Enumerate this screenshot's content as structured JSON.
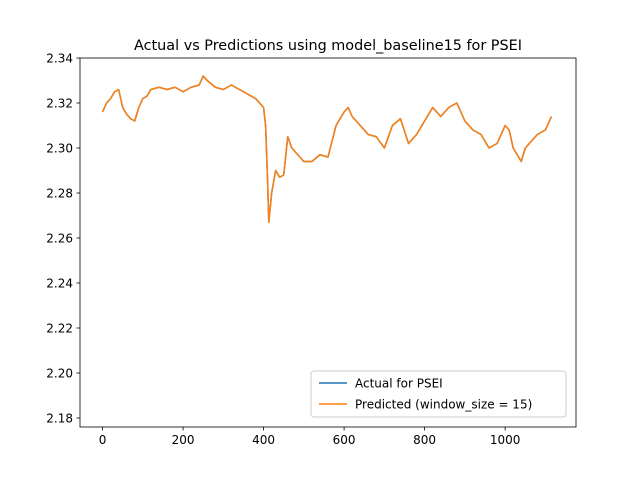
{
  "chart_data": {
    "type": "line",
    "title": "Actual vs Predictions using model_baseline15 for PSEI",
    "xlabel": "",
    "ylabel": "",
    "xlim": [
      -56,
      1176
    ],
    "ylim": [
      2.176,
      2.34
    ],
    "x_ticks": [
      0,
      200,
      400,
      600,
      800,
      1000
    ],
    "x_tick_labels": [
      "0",
      "200",
      "400",
      "600",
      "800",
      "1000"
    ],
    "y_ticks": [
      2.18,
      2.2,
      2.22,
      2.24,
      2.26,
      2.28,
      2.3,
      2.32,
      2.34
    ],
    "y_tick_labels": [
      "2.18",
      "2.20",
      "2.22",
      "2.24",
      "2.26",
      "2.28",
      "2.30",
      "2.32",
      "2.34"
    ],
    "grid": false,
    "legend_position": "lower-right",
    "series": [
      {
        "name": "Actual for PSEI",
        "color": "#1f77b4",
        "x": [
          0,
          10,
          20,
          30,
          40,
          50,
          60,
          70,
          80,
          90,
          100,
          110,
          120,
          140,
          160,
          180,
          200,
          220,
          240,
          250,
          260,
          280,
          300,
          320,
          340,
          360,
          380,
          390,
          400,
          405,
          410,
          413,
          420,
          430,
          440,
          450,
          460,
          470,
          480,
          500,
          520,
          540,
          560,
          580,
          600,
          610,
          620,
          640,
          660,
          680,
          700,
          720,
          740,
          760,
          780,
          800,
          820,
          840,
          860,
          880,
          900,
          920,
          940,
          960,
          980,
          1000,
          1010,
          1020,
          1040,
          1050,
          1060,
          1080,
          1100,
          1110,
          1115
        ],
        "y": [
          2.316,
          2.32,
          2.322,
          2.325,
          2.326,
          2.318,
          2.315,
          2.313,
          2.312,
          2.318,
          2.322,
          2.323,
          2.326,
          2.327,
          2.326,
          2.327,
          2.325,
          2.327,
          2.328,
          2.332,
          2.33,
          2.327,
          2.326,
          2.328,
          2.326,
          2.324,
          2.322,
          2.32,
          2.318,
          2.31,
          2.285,
          2.267,
          2.28,
          2.29,
          2.287,
          2.288,
          2.305,
          2.3,
          2.298,
          2.294,
          2.294,
          2.297,
          2.296,
          2.31,
          2.316,
          2.318,
          2.314,
          2.31,
          2.306,
          2.305,
          2.3,
          2.31,
          2.313,
          2.302,
          2.306,
          2.312,
          2.318,
          2.314,
          2.318,
          2.32,
          2.312,
          2.308,
          2.306,
          2.3,
          2.302,
          2.31,
          2.308,
          2.3,
          2.294,
          2.3,
          2.302,
          2.306,
          2.308,
          2.312,
          2.314
        ]
      },
      {
        "name": "Predicted (window_size = 15)",
        "color": "#ff7f0e",
        "x": [
          0,
          10,
          20,
          30,
          40,
          50,
          60,
          70,
          80,
          90,
          100,
          110,
          120,
          140,
          160,
          180,
          200,
          220,
          240,
          250,
          260,
          280,
          300,
          320,
          340,
          360,
          380,
          390,
          400,
          405,
          410,
          413,
          420,
          430,
          440,
          450,
          460,
          470,
          480,
          500,
          520,
          540,
          560,
          580,
          600,
          610,
          620,
          640,
          660,
          680,
          700,
          720,
          740,
          760,
          780,
          800,
          820,
          840,
          860,
          880,
          900,
          920,
          940,
          960,
          980,
          1000,
          1010,
          1020,
          1040,
          1050,
          1060,
          1080,
          1100,
          1110,
          1115
        ],
        "y": [
          2.316,
          2.32,
          2.322,
          2.325,
          2.326,
          2.318,
          2.315,
          2.313,
          2.312,
          2.318,
          2.322,
          2.323,
          2.326,
          2.327,
          2.326,
          2.327,
          2.325,
          2.327,
          2.328,
          2.332,
          2.33,
          2.327,
          2.326,
          2.328,
          2.326,
          2.324,
          2.322,
          2.32,
          2.318,
          2.31,
          2.285,
          2.267,
          2.28,
          2.29,
          2.287,
          2.288,
          2.305,
          2.3,
          2.298,
          2.294,
          2.294,
          2.297,
          2.296,
          2.31,
          2.316,
          2.318,
          2.314,
          2.31,
          2.306,
          2.305,
          2.3,
          2.31,
          2.313,
          2.302,
          2.306,
          2.312,
          2.318,
          2.314,
          2.318,
          2.32,
          2.312,
          2.308,
          2.306,
          2.3,
          2.302,
          2.31,
          2.308,
          2.3,
          2.294,
          2.3,
          2.302,
          2.306,
          2.308,
          2.312,
          2.314
        ]
      }
    ]
  }
}
